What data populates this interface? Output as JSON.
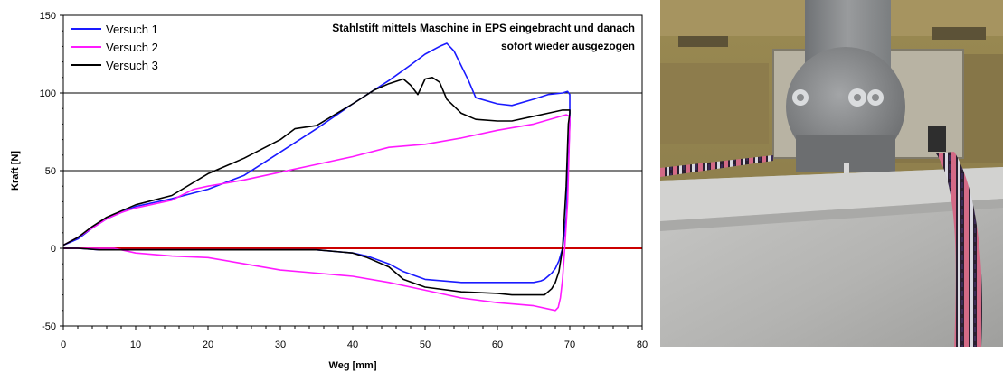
{
  "chart_data": {
    "type": "line",
    "title": "",
    "annotation": [
      "Stahlstift mittels Maschine in EPS eingebracht und  danach",
      "sofort wieder ausgezogen"
    ],
    "xlabel": "Weg [mm]",
    "ylabel": "Kraft [N]",
    "xlim": [
      0,
      80
    ],
    "ylim": [
      -50,
      150
    ],
    "x_ticks": [
      0,
      10,
      20,
      30,
      40,
      50,
      60,
      70,
      80
    ],
    "y_ticks": [
      -50,
      0,
      50,
      100,
      150
    ],
    "grid": "horizontal at 50 and 100",
    "reference_line": {
      "y": 0,
      "color": "#cc0000"
    },
    "legend_position": "top-left",
    "series": [
      {
        "name": "Versuch 1",
        "color": "#1a1aff",
        "x": [
          0,
          2,
          4,
          6,
          8,
          10,
          15,
          20,
          25,
          30,
          35,
          40,
          45,
          48,
          50,
          52,
          53,
          54,
          56,
          57,
          60,
          62,
          65,
          67,
          69,
          69.7,
          70,
          70,
          69.5,
          69.0,
          68.5,
          68.0,
          67.5,
          67.0,
          66.5,
          66.0,
          65.0,
          62,
          60,
          55,
          50,
          47,
          45,
          42,
          40,
          35,
          30,
          25,
          20,
          15,
          10,
          5,
          2,
          0
        ],
        "y": [
          2,
          6,
          13,
          19,
          23,
          27,
          32,
          38,
          47,
          62,
          77,
          93,
          108,
          118,
          125,
          130,
          132,
          127,
          108,
          97,
          93,
          92,
          96,
          99,
          100,
          101,
          99,
          80,
          20,
          0,
          -8,
          -13,
          -16,
          -18,
          -20,
          -21,
          -22,
          -22,
          -22,
          -22,
          -20,
          -15,
          -10,
          -5,
          -3,
          -1,
          -1,
          -1,
          -1,
          -1,
          -1,
          -1,
          0,
          0
        ]
      },
      {
        "name": "Versuch 2",
        "color": "#ff1aff",
        "x": [
          0,
          2,
          4,
          6,
          8,
          10,
          15,
          18,
          20,
          25,
          30,
          35,
          40,
          45,
          50,
          55,
          60,
          65,
          68,
          69.5,
          70,
          70,
          69.7,
          69.3,
          69.0,
          68.7,
          68.4,
          68,
          65,
          60,
          55,
          50,
          45,
          40,
          35,
          30,
          25,
          20,
          15,
          10,
          7,
          6,
          4,
          2,
          0
        ],
        "y": [
          2,
          7,
          13,
          19,
          23,
          26,
          31,
          38,
          40,
          44,
          49,
          54,
          59,
          65,
          67,
          71,
          76,
          80,
          84,
          86,
          85,
          80,
          30,
          0,
          -20,
          -32,
          -38,
          -40,
          -37,
          -35,
          -32,
          -27,
          -22,
          -18,
          -16,
          -14,
          -10,
          -6,
          -5,
          -3,
          0,
          0,
          0,
          0,
          0
        ]
      },
      {
        "name": "Versuch 3",
        "color": "#000000",
        "x": [
          0,
          2,
          4,
          6,
          8,
          10,
          15,
          20,
          25,
          30,
          32,
          35,
          40,
          43,
          45,
          47,
          48,
          49,
          50,
          51,
          52,
          53,
          55,
          57,
          60,
          62,
          65,
          67,
          69,
          70,
          70,
          69.8,
          69.5,
          69.0,
          68.5,
          68.0,
          67.5,
          67.0,
          66.5,
          66.0,
          65.0,
          62,
          60,
          55,
          50,
          47,
          45,
          42,
          40,
          35,
          30,
          25,
          20,
          15,
          10,
          5,
          2,
          0
        ],
        "y": [
          2,
          7,
          14,
          20,
          24,
          28,
          34,
          48,
          58,
          70,
          77,
          79,
          93,
          102,
          106,
          109,
          105,
          99,
          109,
          110,
          107,
          96,
          87,
          83,
          82,
          82,
          85,
          87,
          89,
          89,
          87,
          80,
          40,
          0,
          -15,
          -22,
          -26,
          -28,
          -30,
          -30,
          -30,
          -30,
          -29,
          -28,
          -25,
          -20,
          -12,
          -6,
          -3,
          -1,
          -1,
          -1,
          -1,
          -1,
          -1,
          -1,
          0,
          0
        ]
      }
    ]
  }
}
